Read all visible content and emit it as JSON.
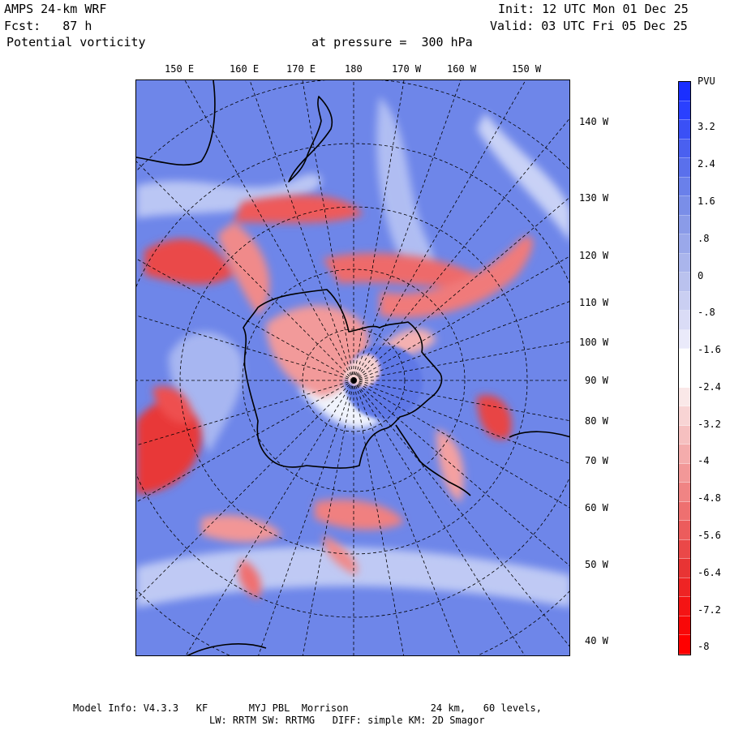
{
  "header": {
    "model": "AMPS 24-km WRF",
    "fcst": "Fcst:   87 h",
    "field": "Potential vorticity",
    "level": "at pressure =  300 hPa",
    "init": "Init: 12 UTC Mon 01 Dec 25",
    "valid": "Valid: 03 UTC Fri 05 Dec 25"
  },
  "top_longitudes": [
    "150 E",
    "160 E",
    "170 E",
    "180",
    "170 W",
    "160 W",
    "150 W"
  ],
  "right_longitudes": [
    "140 W",
    "130 W",
    "120 W",
    "110 W",
    "100 W",
    "90 W",
    "80 W",
    "70 W",
    "60 W",
    "50 W",
    "40 W"
  ],
  "colorbar": {
    "title": "PVU",
    "labels": [
      "3.2",
      "2.4",
      "1.6",
      ".8",
      "0",
      "-.8",
      "-1.6",
      "-2.4",
      "-3.2",
      "-4",
      "-4.8",
      "-5.6",
      "-6.4",
      "-7.2",
      "-8"
    ],
    "colors": [
      "#1a2fff",
      "#2a40ff",
      "#3a50f6",
      "#4a60f0",
      "#5a70ec",
      "#6a80ea",
      "#7a8ee8",
      "#8a9be8",
      "#9aa8ea",
      "#aab5ec",
      "#bac2ee",
      "#cacff2",
      "#dadcf6",
      "#eaeafa",
      "#ffffff",
      "#ffffff",
      "#fae8e8",
      "#f8d4d4",
      "#f6c0c0",
      "#f4acac",
      "#f29898",
      "#f08484",
      "#ee7070",
      "#ec5c5c",
      "#ea4848",
      "#e83434",
      "#ee2424",
      "#f41414",
      "#f80808",
      "#ff0000"
    ]
  },
  "footer": {
    "line1": "Model Info: V4.3.3   KF       MYJ PBL  Morrison              24 km,   60 levels,",
    "line2": "LW: RRTM SW: RRTMG   DIFF: simple KM: 2D Smagor"
  }
}
